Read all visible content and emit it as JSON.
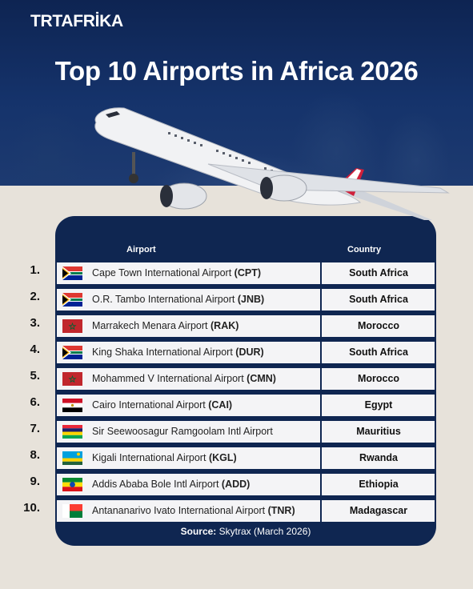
{
  "brand": {
    "logo": "TRTAFRİKA"
  },
  "title": "Top 10 Airports in Africa 2026",
  "table": {
    "headers": {
      "airport": "Airport",
      "country": "Country"
    },
    "rows": [
      {
        "rank": "1.",
        "name": "Cape Town International Airport",
        "code": "(CPT)",
        "country": "South Africa",
        "flag": "south-africa-flag"
      },
      {
        "rank": "2.",
        "name": "O.R. Tambo International Airport",
        "code": "(JNB)",
        "country": "South Africa",
        "flag": "south-africa-flag"
      },
      {
        "rank": "3.",
        "name": "Marrakech Menara Airport",
        "code": "(RAK)",
        "country": "Morocco",
        "flag": "morocco-flag"
      },
      {
        "rank": "4.",
        "name": "King Shaka International Airport",
        "code": "(DUR)",
        "country": "South Africa",
        "flag": "south-africa-flag"
      },
      {
        "rank": "5.",
        "name": "Mohammed V International Airport",
        "code": "(CMN)",
        "country": "Morocco",
        "flag": "morocco-flag"
      },
      {
        "rank": "6.",
        "name": "Cairo International Airport",
        "code": "(CAI)",
        "country": "Egypt",
        "flag": "egypt-flag"
      },
      {
        "rank": "7.",
        "name": "Sir Seewoosagur Ramgoolam Intl Airport",
        "code": "",
        "country": "Mauritius",
        "flag": "mauritius-flag"
      },
      {
        "rank": "8.",
        "name": "Kigali International Airport",
        "code": "(KGL)",
        "country": "Rwanda",
        "flag": "rwanda-flag"
      },
      {
        "rank": "9.",
        "name": "Addis Ababa Bole Intl Airport",
        "code": "(ADD)",
        "country": "Ethiopia",
        "flag": "ethiopia-flag"
      },
      {
        "rank": "10.",
        "name": "Antananarivo Ivato International Airport ",
        "code": "(TNR)",
        "country": "Madagascar",
        "flag": "madagascar-flag"
      }
    ]
  },
  "source": {
    "label": "Source:",
    "text": "Skytrax (March 2026)"
  },
  "colors": {
    "navy": "#0f2651",
    "row_bg": "#f4f4f6",
    "paper": "#e7e2da",
    "plane_tail": "#d0203a"
  }
}
